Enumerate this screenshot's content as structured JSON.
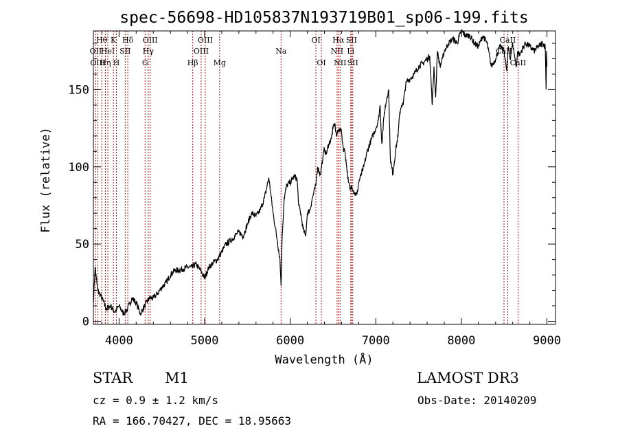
{
  "chart_data": {
    "type": "line",
    "title": "spec-56698-HD105837N193719B01_sp06-199.fits",
    "xlabel": "Wavelength (Å)",
    "ylabel": "Flux (relative)",
    "xlim": [
      3700,
      9100
    ],
    "ylim": [
      -2,
      188
    ],
    "xticks": [
      4000,
      5000,
      6000,
      7000,
      8000,
      9000
    ],
    "yticks": [
      0,
      50,
      100,
      150
    ],
    "series": [
      {
        "name": "flux",
        "x": [
          3700,
          3720,
          3750,
          3800,
          3850,
          3900,
          3950,
          4000,
          4050,
          4100,
          4150,
          4200,
          4250,
          4300,
          4350,
          4400,
          4450,
          4500,
          4550,
          4600,
          4650,
          4700,
          4750,
          4800,
          4850,
          4900,
          4950,
          5000,
          5050,
          5100,
          5150,
          5200,
          5250,
          5300,
          5350,
          5400,
          5450,
          5500,
          5550,
          5600,
          5650,
          5700,
          5750,
          5800,
          5850,
          5880,
          5893,
          5906,
          5930,
          5960,
          6000,
          6050,
          6080,
          6100,
          6130,
          6150,
          6180,
          6200,
          6230,
          6260,
          6300,
          6320,
          6350,
          6380,
          6400,
          6420,
          6450,
          6480,
          6500,
          6520,
          6540,
          6560,
          6580,
          6600,
          6620,
          6640,
          6660,
          6680,
          6700,
          6720,
          6750,
          6780,
          6800,
          6830,
          6860,
          6900,
          6950,
          7000,
          7030,
          7050,
          7070,
          7100,
          7130,
          7150,
          7170,
          7200,
          7230,
          7260,
          7280,
          7300,
          7320,
          7340,
          7360,
          7400,
          7450,
          7500,
          7550,
          7600,
          7630,
          7660,
          7680,
          7700,
          7720,
          7750,
          7780,
          7800,
          7850,
          7900,
          7950,
          8000,
          8050,
          8100,
          8150,
          8200,
          8250,
          8300,
          8350,
          8400,
          8450,
          8500,
          8530,
          8550,
          8570,
          8600,
          8640,
          8660,
          8680,
          8700,
          8750,
          8800,
          8850,
          8900,
          8950,
          8980,
          8990,
          8995,
          9000
        ],
        "values": [
          12,
          35,
          20,
          15,
          8,
          10,
          6,
          10,
          5,
          8,
          15,
          12,
          5,
          10,
          15,
          15,
          18,
          22,
          25,
          30,
          33,
          33,
          34,
          35,
          35,
          37,
          33,
          28,
          35,
          38,
          40,
          45,
          50,
          52,
          55,
          58,
          55,
          63,
          70,
          68,
          72,
          80,
          93,
          70,
          52,
          40,
          23,
          55,
          80,
          88,
          90,
          94,
          92,
          75,
          68,
          60,
          55,
          70,
          72,
          80,
          88,
          100,
          95,
          105,
          112,
          108,
          115,
          118,
          125,
          128,
          120,
          123,
          125,
          122,
          112,
          110,
          100,
          90,
          85,
          88,
          83,
          82,
          90,
          95,
          100,
          110,
          118,
          125,
          130,
          140,
          115,
          135,
          145,
          150,
          105,
          95,
          110,
          120,
          135,
          140,
          140,
          150,
          155,
          157,
          160,
          165,
          167,
          170,
          172,
          140,
          165,
          145,
          175,
          165,
          170,
          175,
          180,
          183,
          180,
          188,
          185,
          185,
          180,
          178,
          185,
          180,
          165,
          170,
          178,
          175,
          162,
          178,
          170,
          180,
          165,
          175,
          172,
          175,
          180,
          178,
          175,
          178,
          180,
          178,
          150,
          175,
          165
        ]
      }
    ]
  },
  "lines": [
    {
      "w": 3727,
      "label": "OII",
      "row": 2
    },
    {
      "w": 3750,
      "label": "OIII",
      "row": 3
    },
    {
      "w": 3798,
      "label": "Hθ",
      "row": 1
    },
    {
      "w": 3840,
      "label": "Hη",
      "row": 3
    },
    {
      "w": 3869,
      "label": "HeI",
      "row": 2
    },
    {
      "w": 3934,
      "label": "K",
      "row": 1
    },
    {
      "w": 3969,
      "label": "H",
      "row": 3
    },
    {
      "w": 4072,
      "label": "SII",
      "row": 2
    },
    {
      "w": 4102,
      "label": "Hδ",
      "row": 1
    },
    {
      "w": 4304,
      "label": "G",
      "row": 3
    },
    {
      "w": 4341,
      "label": "Hγ",
      "row": 2
    },
    {
      "w": 4363,
      "label": "OIII",
      "row": 1
    },
    {
      "w": 4861,
      "label": "Hβ",
      "row": 3
    },
    {
      "w": 4959,
      "label": "OIII",
      "row": 2
    },
    {
      "w": 5007,
      "label": "OIII",
      "row": 1
    },
    {
      "w": 5175,
      "label": "Mg",
      "row": 3
    },
    {
      "w": 5893,
      "label": "Na",
      "row": 2
    },
    {
      "w": 6300,
      "label": "OI",
      "row": 1
    },
    {
      "w": 6364,
      "label": "OI",
      "row": 3
    },
    {
      "w": 6548,
      "label": "NII",
      "row": 2
    },
    {
      "w": 6563,
      "label": "Hα",
      "row": 1
    },
    {
      "w": 6583,
      "label": "NII",
      "row": 3
    },
    {
      "w": 6707,
      "label": "Li",
      "row": 2
    },
    {
      "w": 6716,
      "label": "SII",
      "row": 1
    },
    {
      "w": 6731,
      "label": "SII",
      "row": 3
    },
    {
      "w": 8498,
      "label": "CaII",
      "row": 2
    },
    {
      "w": 8542,
      "label": "CaII",
      "row": 1
    },
    {
      "w": 8662,
      "label": "CaII",
      "row": 3
    }
  ],
  "info": {
    "class": "STAR",
    "subclass": "M1",
    "survey": "LAMOST DR3",
    "cz": "cz = 0.9 ± 1.2 km/s",
    "obsdate": "Obs-Date: 20140209",
    "radec": "RA = 166.70427, DEC =  18.95663"
  }
}
